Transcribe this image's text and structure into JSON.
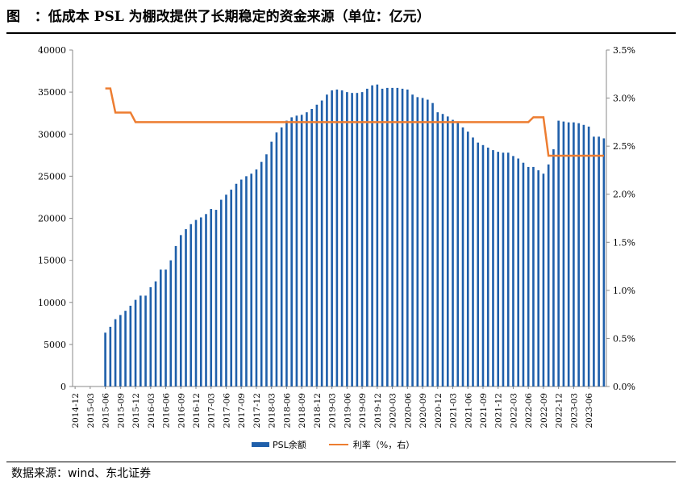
{
  "header": {
    "figure_label": "图",
    "title_text": "：低成本 PSL 为棚改提供了长期稳定的资金来源（单位：亿元）"
  },
  "footer": {
    "source_text": "数据来源：wind、东北证券"
  },
  "colors": {
    "bar": "#1f5faa",
    "line": "#ed7d31",
    "axis": "#888888",
    "grid": "#d9d9d9"
  },
  "chart_data": {
    "type": "bar",
    "title": "低成本 PSL 为棚改提供了长期稳定的资金来源（单位：亿元）",
    "ylim": [
      0,
      40000
    ],
    "y2lim": [
      0,
      3.5
    ],
    "y_ticks": [
      "0",
      "5000",
      "10000",
      "15000",
      "20000",
      "25000",
      "30000",
      "35000",
      "40000"
    ],
    "y2_ticks": [
      "0.0%",
      "0.5%",
      "1.0%",
      "1.5%",
      "2.0%",
      "2.5%",
      "3.0%",
      "3.5%"
    ],
    "x_tick_labels": [
      "2014-12",
      "2015-03",
      "2015-06",
      "2015-09",
      "2015-12",
      "2016-03",
      "2016-06",
      "2016-09",
      "2016-12",
      "2017-03",
      "2017-06",
      "2017-09",
      "2017-12",
      "2018-03",
      "2018-06",
      "2018-09",
      "2018-12",
      "2019-03",
      "2019-06",
      "2019-09",
      "2019-12",
      "2020-03",
      "2020-06",
      "2020-09",
      "2020-12",
      "2021-03",
      "2021-06",
      "2021-09",
      "2021-12",
      "2022-03",
      "2022-06",
      "2022-09",
      "2022-12",
      "2023-03",
      "2023-06"
    ],
    "categories": [
      "2014-12",
      "2015-01",
      "2015-02",
      "2015-03",
      "2015-04",
      "2015-05",
      "2015-06",
      "2015-07",
      "2015-08",
      "2015-09",
      "2015-10",
      "2015-11",
      "2015-12",
      "2016-01",
      "2016-02",
      "2016-03",
      "2016-04",
      "2016-05",
      "2016-06",
      "2016-07",
      "2016-08",
      "2016-09",
      "2016-10",
      "2016-11",
      "2016-12",
      "2017-01",
      "2017-02",
      "2017-03",
      "2017-04",
      "2017-05",
      "2017-06",
      "2017-07",
      "2017-08",
      "2017-09",
      "2017-10",
      "2017-11",
      "2017-12",
      "2018-01",
      "2018-02",
      "2018-03",
      "2018-04",
      "2018-05",
      "2018-06",
      "2018-07",
      "2018-08",
      "2018-09",
      "2018-10",
      "2018-11",
      "2018-12",
      "2019-01",
      "2019-02",
      "2019-03",
      "2019-04",
      "2019-05",
      "2019-06",
      "2019-07",
      "2019-08",
      "2019-09",
      "2019-10",
      "2019-11",
      "2019-12",
      "2020-01",
      "2020-02",
      "2020-03",
      "2020-04",
      "2020-05",
      "2020-06",
      "2020-07",
      "2020-08",
      "2020-09",
      "2020-10",
      "2020-11",
      "2020-12",
      "2021-01",
      "2021-02",
      "2021-03",
      "2021-04",
      "2021-05",
      "2021-06",
      "2021-07",
      "2021-08",
      "2021-09",
      "2021-10",
      "2021-11",
      "2021-12",
      "2022-01",
      "2022-02",
      "2022-03",
      "2022-04",
      "2022-05",
      "2022-06",
      "2022-07",
      "2022-08",
      "2022-09",
      "2022-10",
      "2022-11",
      "2022-12",
      "2023-01",
      "2023-02",
      "2023-03",
      "2023-04",
      "2023-05",
      "2023-06",
      "2023-07",
      "2023-08",
      "2023-09"
    ],
    "series": [
      {
        "name": "PSL余额",
        "kind": "bar",
        "axis": "left",
        "values": [
          null,
          null,
          null,
          null,
          null,
          null,
          6400,
          7100,
          8000,
          8500,
          9000,
          9600,
          10300,
          10800,
          10800,
          11800,
          12500,
          13900,
          13900,
          15000,
          16700,
          18000,
          18700,
          19300,
          19800,
          20100,
          20500,
          21100,
          21000,
          22200,
          22800,
          23400,
          24100,
          24600,
          25000,
          25300,
          25800,
          26700,
          27600,
          29100,
          30200,
          30800,
          31600,
          32000,
          32200,
          32300,
          32600,
          33000,
          33500,
          34000,
          34700,
          35200,
          35300,
          35200,
          35000,
          34900,
          34900,
          35000,
          35400,
          35800,
          35900,
          35400,
          35500,
          35500,
          35500,
          35400,
          35300,
          34700,
          34400,
          34300,
          34100,
          33700,
          32600,
          32400,
          32100,
          31700,
          31500,
          30800,
          30300,
          29600,
          29000,
          28700,
          28400,
          28100,
          27900,
          27800,
          27800,
          27400,
          27100,
          26600,
          26100,
          26100,
          25700,
          25300,
          26400,
          28200,
          31600,
          31500,
          31400,
          31400,
          31300,
          31100,
          30900,
          29700,
          29700,
          29500
        ]
      },
      {
        "name": "利率（%，右）",
        "kind": "line",
        "axis": "right",
        "values": [
          null,
          null,
          null,
          null,
          null,
          null,
          3.1,
          3.1,
          2.85,
          2.85,
          2.85,
          2.85,
          2.75,
          2.75,
          2.75,
          2.75,
          2.75,
          2.75,
          2.75,
          2.75,
          2.75,
          2.75,
          2.75,
          2.75,
          2.75,
          2.75,
          2.75,
          2.75,
          2.75,
          2.75,
          2.75,
          2.75,
          2.75,
          2.75,
          2.75,
          2.75,
          2.75,
          2.75,
          2.75,
          2.75,
          2.75,
          2.75,
          2.75,
          2.75,
          2.75,
          2.75,
          2.75,
          2.75,
          2.75,
          2.75,
          2.75,
          2.75,
          2.75,
          2.75,
          2.75,
          2.75,
          2.75,
          2.75,
          2.75,
          2.75,
          2.75,
          2.75,
          2.75,
          2.75,
          2.75,
          2.75,
          2.75,
          2.75,
          2.75,
          2.75,
          2.75,
          2.75,
          2.75,
          2.75,
          2.75,
          2.75,
          2.75,
          2.75,
          2.75,
          2.75,
          2.75,
          2.75,
          2.75,
          2.75,
          2.75,
          2.75,
          2.75,
          2.75,
          2.75,
          2.75,
          2.75,
          2.8,
          2.8,
          2.8,
          2.4,
          2.4,
          2.4,
          2.4,
          2.4,
          2.4,
          2.4,
          2.4,
          2.4,
          2.4,
          2.4,
          2.4
        ]
      }
    ],
    "legend": [
      "PSL余额",
      "利率（%，右）"
    ],
    "legend_position": "bottom",
    "grid": false
  }
}
